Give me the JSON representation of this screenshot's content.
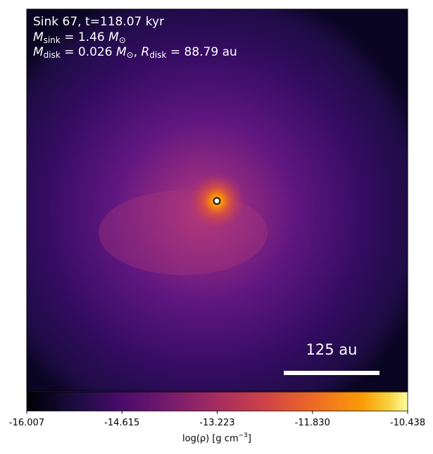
{
  "chart_data": {
    "type": "image",
    "title": "Sink 67, t=118.07 kyr",
    "annotations": [
      [
        "M",
        "sink",
        " = 1.46 ",
        "M",
        "⊙"
      ],
      [
        "M",
        "disk",
        " = 0.026 ",
        "M",
        "⊙",
        ", ",
        "R",
        "disk",
        " = 88.79 au"
      ]
    ],
    "scale_bar_label": "125 au",
    "colorbar_label": [
      "log(ρ) [g cm",
      "−3",
      "]"
    ],
    "clim": [
      -16.007,
      -10.438
    ],
    "cticks": [
      -16.007,
      -14.615,
      -13.223,
      {
        "value": -11.83,
        "label": "-11.830"
      },
      -10.438
    ]
  }
}
